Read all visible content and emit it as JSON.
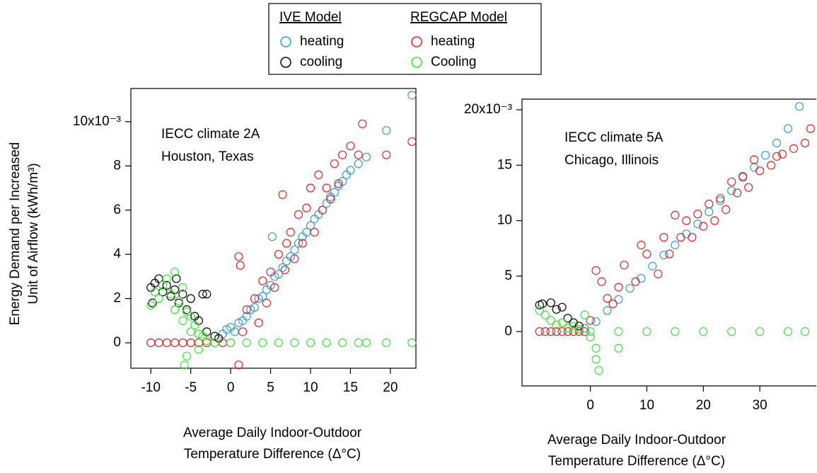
{
  "chart_data": [
    {
      "type": "scatter",
      "legend_titles": [
        "IVE Model",
        "REGCAP Model"
      ],
      "annotations": [
        "IECC climate 2A",
        "Houston, Texas"
      ],
      "ylabel": [
        "Energy Demand per Increased",
        "Unit of Airflow (kWh/m³)"
      ],
      "xlabel": [
        "Average Daily Indoor-Outdoor",
        "Temperature Difference (Δ°C)"
      ],
      "xlim": [
        -12.5,
        23.2
      ],
      "ylim": [
        -1.15,
        11.5
      ],
      "xticks": [
        -10,
        -5,
        0,
        5,
        10,
        15,
        20
      ],
      "yticks": [
        0,
        2,
        4,
        6,
        8,
        {
          "value": 10,
          "label": "10x10⁻³"
        }
      ],
      "series": [
        {
          "name": "heating",
          "color": "#2f9bd6",
          "x": [
            -1,
            -0.5,
            0,
            0.5,
            1,
            1.5,
            2,
            2.5,
            3,
            3.5,
            4,
            4.5,
            5,
            5.2,
            5.5,
            6,
            6.5,
            7,
            7.5,
            8,
            8.5,
            9,
            9.5,
            10,
            10.5,
            11,
            11.5,
            12,
            12.5,
            13,
            13.5,
            14,
            14.5,
            15,
            16,
            17,
            19.5,
            22.7
          ],
          "y": [
            0.4,
            0.6,
            0.7,
            0.5,
            0.9,
            1.0,
            1.2,
            1.5,
            1.6,
            2.0,
            2.1,
            2.4,
            2.6,
            4.8,
            3.0,
            3.1,
            3.4,
            3.7,
            3.9,
            4.2,
            4.5,
            4.8,
            5.0,
            5.3,
            5.6,
            5.8,
            6.0,
            6.3,
            6.6,
            6.8,
            7.1,
            7.3,
            7.6,
            7.8,
            8.1,
            8.4,
            9.6,
            11.2
          ]
        },
        {
          "name": "cooling",
          "color": "#000000",
          "x": [
            -10,
            -9.5,
            -9,
            -8.5,
            -8,
            -7.5,
            -7,
            -6.5,
            -6,
            -5.5,
            -5,
            -4.5,
            -4,
            -3.5,
            -3,
            -3,
            -2,
            -1.5,
            -9.8,
            -6.8
          ],
          "y": [
            2.5,
            2.7,
            2.9,
            2.3,
            2.6,
            2.1,
            2.4,
            1.8,
            2.2,
            1.5,
            2.0,
            1.2,
            1.0,
            2.2,
            2.2,
            0.5,
            0.3,
            0.2,
            1.8,
            2.9
          ]
        },
        {
          "name": "heating",
          "color": "#e8201e",
          "x": [
            -10,
            -9,
            -8,
            -7,
            -6,
            -5,
            -4,
            -3,
            -2,
            -1,
            0,
            1,
            1.2,
            1,
            1.5,
            2,
            3,
            3.5,
            4,
            4.5,
            5,
            5.5,
            6,
            6.5,
            6.8,
            7,
            7.5,
            8,
            8.5,
            9,
            9.5,
            10,
            10.5,
            11,
            11.5,
            12,
            12.5,
            13,
            13.5,
            14,
            15,
            16,
            16.5,
            19.5,
            22.7
          ],
          "y": [
            0,
            0,
            0,
            0,
            0,
            0,
            0,
            0,
            0,
            0,
            0,
            3.9,
            3.5,
            -1,
            0.5,
            1.5,
            2.0,
            0.9,
            2.8,
            1.8,
            3.2,
            2.5,
            4.0,
            6.7,
            3.3,
            4.5,
            5.0,
            3.8,
            5.8,
            4.5,
            6.1,
            7.0,
            5.0,
            7.6,
            6.0,
            7.0,
            6.5,
            8.1,
            7.2,
            8.5,
            8.9,
            8.5,
            9.9,
            8.5,
            9.1
          ]
        },
        {
          "name": "Cooling",
          "color": "#33e633",
          "x": [
            -10,
            -9.5,
            -9,
            -8.5,
            -8,
            -7.5,
            -7,
            -7,
            -6.5,
            -6,
            -6,
            -5.5,
            -5,
            -5,
            -5.5,
            -4.5,
            -4,
            -4,
            -3.5,
            -3,
            -2,
            0,
            2,
            4,
            6,
            8,
            10,
            12,
            14,
            16,
            17,
            19.5,
            22.7,
            -5.8
          ],
          "y": [
            1.7,
            2.3,
            2.0,
            2.6,
            2.9,
            2.2,
            3.2,
            1.5,
            1.9,
            2.5,
            1.0,
            1.4,
            1.2,
            0.5,
            -0.6,
            0.8,
            0.4,
            -0.3,
            0.3,
            0.1,
            0,
            0,
            0,
            0,
            0,
            0,
            0,
            0,
            0,
            0,
            0,
            0,
            0,
            -1.0
          ]
        }
      ]
    },
    {
      "type": "scatter",
      "annotations": [
        "IECC climate 5A",
        "Chicago, Illinois"
      ],
      "xlabel": [
        "Average Daily Indoor-Outdoor",
        "Temperature Difference (Δ°C)"
      ],
      "xlim": [
        -12.1,
        40
      ],
      "ylim": [
        -4.9,
        20.96
      ],
      "xticks": [
        0,
        10,
        20,
        30
      ],
      "yticks": [
        0,
        5,
        10,
        15,
        {
          "value": 20,
          "label": "20x10⁻³"
        }
      ],
      "series": [
        {
          "name": "heating",
          "color": "#2f9bd6",
          "x": [
            -1,
            1,
            3,
            5,
            7,
            9,
            11,
            13,
            15,
            17,
            19,
            21,
            23,
            25,
            27,
            29,
            31,
            33,
            35,
            37
          ],
          "y": [
            0.3,
            0.9,
            1.9,
            2.9,
            3.9,
            4.8,
            5.9,
            6.9,
            7.8,
            8.8,
            9.7,
            10.8,
            11.8,
            12.7,
            13.9,
            14.8,
            15.9,
            17.0,
            18.3,
            20.3
          ]
        },
        {
          "name": "cooling",
          "color": "#000000",
          "x": [
            -9,
            -8.5,
            -7,
            -6,
            -5,
            -4,
            -3,
            -2
          ],
          "y": [
            2.4,
            2.5,
            2.6,
            2.0,
            2.2,
            1.2,
            0.8,
            0.5
          ]
        },
        {
          "name": "heating",
          "color": "#e8201e",
          "x": [
            -9,
            -8,
            -7,
            -6,
            -5,
            -4,
            -3,
            -2,
            -1,
            0,
            1,
            2,
            3,
            4,
            5,
            6,
            8,
            9,
            10,
            12,
            13,
            14,
            15,
            16,
            17,
            18,
            19,
            20,
            21,
            22,
            23,
            24,
            25,
            26,
            27,
            28,
            29,
            30,
            32,
            34,
            36,
            38,
            39,
            33
          ],
          "y": [
            0,
            0,
            0,
            0,
            0,
            0,
            0,
            0,
            0,
            1,
            5.5,
            4.5,
            3,
            2.5,
            4,
            6,
            4.5,
            7.8,
            7,
            5.2,
            8.5,
            7,
            10.5,
            8.5,
            10,
            8.5,
            10.6,
            9.5,
            11.5,
            10,
            12,
            11,
            13.5,
            12.5,
            14,
            13,
            15.5,
            14.5,
            15,
            16,
            16.5,
            17,
            18.3,
            15.8
          ]
        },
        {
          "name": "Cooling",
          "color": "#33e633",
          "x": [
            -9,
            -8,
            -7,
            -6,
            -5,
            -4,
            -3,
            -2,
            0,
            1,
            1,
            1.5,
            5,
            0,
            5,
            10,
            15,
            20,
            25,
            30,
            35,
            38,
            -1
          ],
          "y": [
            1.9,
            1.5,
            1.0,
            0.6,
            0.8,
            0.3,
            0.5,
            0.2,
            -0.5,
            -1.5,
            -2.5,
            -3.5,
            -1.5,
            0,
            0,
            0,
            0,
            0,
            0,
            0,
            0,
            0,
            1.5
          ]
        }
      ]
    }
  ]
}
